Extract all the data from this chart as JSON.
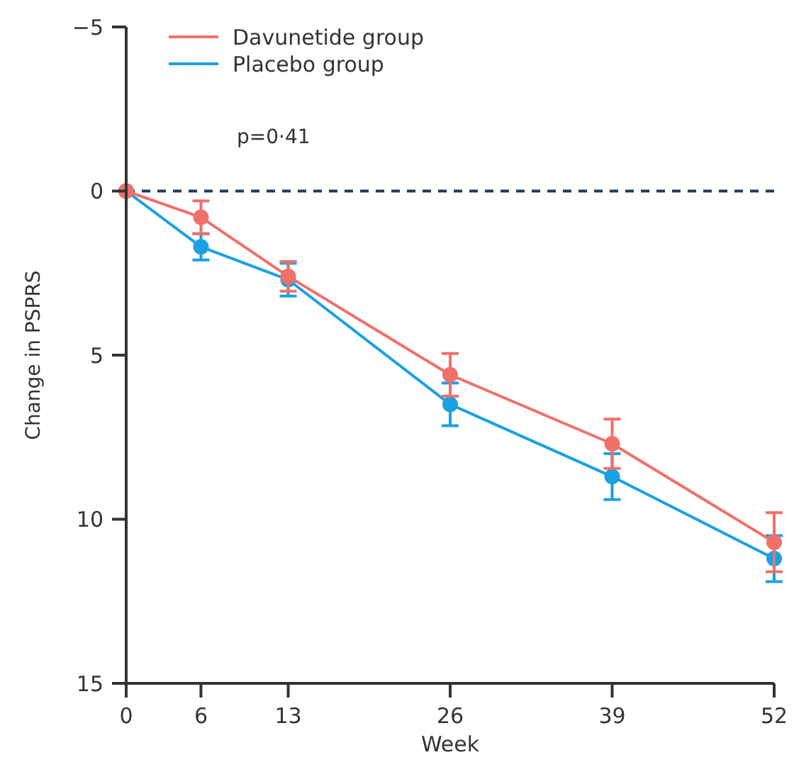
{
  "chart_data": {
    "type": "line",
    "xlabel": "Week",
    "ylabel": "Change in PSPRS",
    "x": [
      0,
      6,
      13,
      26,
      39,
      52
    ],
    "xlim": [
      0,
      52
    ],
    "xticks": [
      0,
      6,
      13,
      26,
      39,
      52
    ],
    "ylim": [
      15,
      -5
    ],
    "yticks": [
      {
        "value": -5,
        "label": "−5"
      },
      0,
      5,
      10,
      15
    ],
    "series": [
      {
        "name": "Davunetide group",
        "color": "#f0706a",
        "values": [
          0,
          0.8,
          2.6,
          5.6,
          7.7,
          10.7
        ],
        "errors": [
          null,
          0.5,
          0.45,
          0.65,
          0.75,
          0.9
        ]
      },
      {
        "name": "Placebo group",
        "color": "#1ba1e2",
        "values": [
          0,
          1.7,
          2.7,
          6.5,
          8.7,
          11.2
        ],
        "errors": [
          null,
          0.4,
          0.5,
          0.65,
          0.7,
          0.7
        ]
      }
    ],
    "ref_lines": [
      {
        "axis": "y",
        "value": 0,
        "color": "#1f3b57",
        "line_style": "dashed"
      }
    ],
    "annotations": [
      "p=0·41"
    ],
    "legend": "top left",
    "marker": "circle"
  }
}
